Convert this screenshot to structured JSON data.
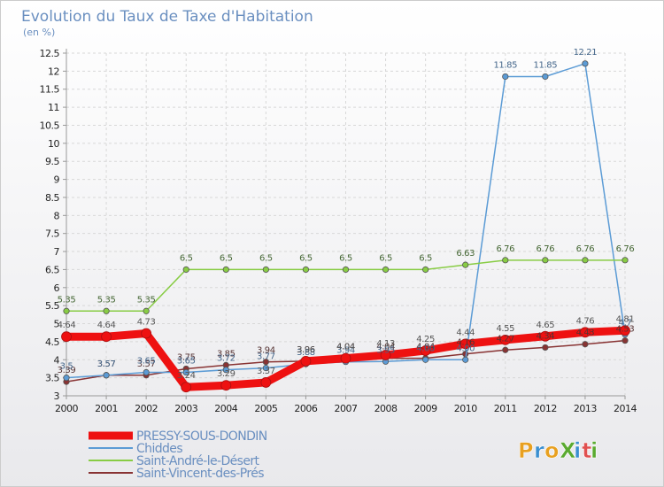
{
  "chart_data": {
    "type": "line",
    "title": "Evolution du Taux de Taxe d'Habitation",
    "subtitle": "(en %)",
    "x": [
      "2000",
      "2001",
      "2002",
      "2003",
      "2004",
      "2005",
      "2006",
      "2007",
      "2008",
      "2009",
      "2010",
      "2011",
      "2012",
      "2013",
      "2014"
    ],
    "ylim": [
      3,
      12.5
    ],
    "yticks": [
      "3",
      "3.5",
      "4",
      "4.5",
      "5",
      "5.5",
      "6",
      "6.5",
      "7",
      "7.5",
      "8",
      "8.5",
      "9",
      "9.5",
      "10",
      "10.5",
      "11",
      "11.5",
      "12",
      "12.5"
    ],
    "grid": true,
    "legend_position": "bottom-left",
    "series": [
      {
        "name": "PRESSY-SOUS-DONDIN",
        "color": "#ee1111",
        "values": [
          4.64,
          4.64,
          4.73,
          3.24,
          3.29,
          3.37,
          3.96,
          4.04,
          4.13,
          4.25,
          4.44,
          4.55,
          4.65,
          4.76,
          4.81
        ],
        "labels": [
          "4.64",
          "4.64",
          "4.73",
          "3.24",
          "3.29",
          "3.37",
          "3.96",
          "4.04",
          "4.13",
          "4.25",
          "4.44",
          "4.55",
          "4.65",
          "4.76",
          "4.81"
        ]
      },
      {
        "name": "Chiddes",
        "color": "#5b9bd5",
        "values": [
          3.5,
          3.57,
          3.65,
          3.65,
          3.72,
          3.77,
          3.88,
          3.94,
          3.95,
          4.0,
          4.0,
          11.85,
          11.85,
          12.21,
          4.7
        ],
        "labels": [
          "3.5",
          "3.57",
          "3.65",
          "3.65",
          "3.72",
          "3.77",
          "3.88",
          "3.94",
          "3.95",
          "4.00",
          "4.00",
          "11.85",
          "11.85",
          "12.21",
          "4.7"
        ]
      },
      {
        "name": "Saint-André-le-Désert",
        "color": "#88cc44",
        "values": [
          5.35,
          5.35,
          5.35,
          6.5,
          6.5,
          6.5,
          6.5,
          6.5,
          6.5,
          6.5,
          6.63,
          6.76,
          6.76,
          6.76,
          6.76
        ],
        "labels": [
          "5.35",
          "5.35",
          "5.35",
          "6.5",
          "6.5",
          "6.5",
          "6.5",
          "6.5",
          "6.5",
          "6.5",
          "6.63",
          "6.76",
          "6.76",
          "6.76",
          "6.76"
        ]
      },
      {
        "name": "Saint-Vincent-des-Prés",
        "color": "#883333",
        "values": [
          3.39,
          3.57,
          3.57,
          3.75,
          3.85,
          3.94,
          3.96,
          4.04,
          4.04,
          4.04,
          4.16,
          4.27,
          4.34,
          4.43,
          4.53
        ],
        "labels": [
          "3.39",
          "3.57",
          "3.57",
          "3.75",
          "3.85",
          "3.94",
          "3.96",
          "4.04",
          "4.04",
          "4.04",
          "4.16",
          "4.27",
          "4.34",
          "4.43",
          "4.53"
        ]
      }
    ]
  },
  "logo": {
    "text": "ProXiti",
    "colors": [
      "#e8a020",
      "#3a8fd0",
      "#e8a020",
      "#5aaa30",
      "#3a8fd0",
      "#e05050",
      "#5aaa30"
    ]
  }
}
